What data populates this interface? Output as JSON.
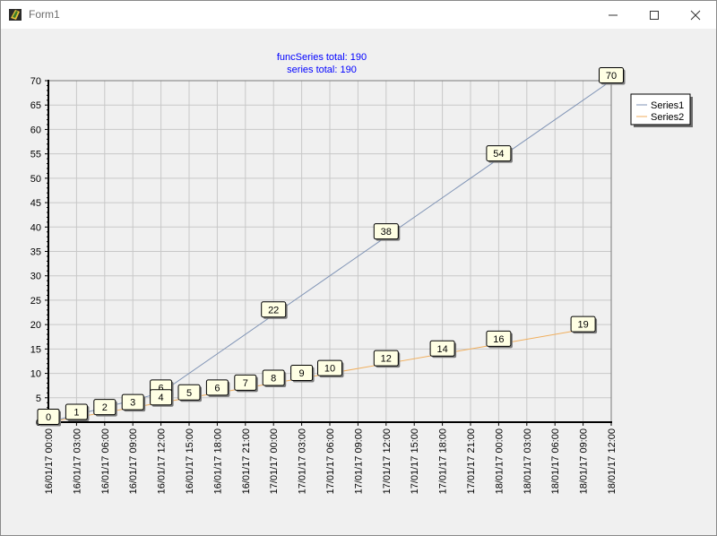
{
  "window": {
    "title": "Form1"
  },
  "chart_data": {
    "type": "line",
    "title": "funcSeries total: 190",
    "subtitle": "series total: 190",
    "title_color": "#0000ff",
    "x": [
      "16/01/17 00:00",
      "16/01/17 03:00",
      "16/01/17 06:00",
      "16/01/17 09:00",
      "16/01/17 12:00",
      "16/01/17 15:00",
      "16/01/17 18:00",
      "16/01/17 21:00",
      "17/01/17 00:00",
      "17/01/17 03:00",
      "17/01/17 06:00",
      "17/01/17 09:00",
      "17/01/17 12:00",
      "17/01/17 15:00",
      "17/01/17 18:00",
      "17/01/17 21:00",
      "18/01/17 00:00",
      "18/01/17 03:00",
      "18/01/17 06:00",
      "18/01/17 09:00",
      "18/01/17 12:00"
    ],
    "ylim": [
      0,
      70
    ],
    "yticks": [
      0,
      5,
      10,
      15,
      20,
      25,
      30,
      35,
      40,
      45,
      50,
      55,
      60,
      65,
      70
    ],
    "grid": true,
    "legend": "top-right",
    "series": [
      {
        "name": "Series1",
        "color": "#7f93b5",
        "points": [
          [
            "16/01/17 00:00",
            0
          ],
          [
            "16/01/17 12:00",
            6
          ],
          [
            "17/01/17 00:00",
            22
          ],
          [
            "17/01/17 12:00",
            38
          ],
          [
            "18/01/17 00:00",
            54
          ],
          [
            "18/01/17 12:00",
            70
          ]
        ],
        "labels": [
          "0",
          "6",
          "22",
          "38",
          "54",
          "70"
        ]
      },
      {
        "name": "Series2",
        "color": "#f0ae5c",
        "points": [
          [
            "16/01/17 00:00",
            0
          ],
          [
            "16/01/17 03:00",
            1
          ],
          [
            "16/01/17 06:00",
            2
          ],
          [
            "16/01/17 09:00",
            3
          ],
          [
            "16/01/17 12:00",
            4
          ],
          [
            "16/01/17 15:00",
            5
          ],
          [
            "16/01/17 18:00",
            6
          ],
          [
            "16/01/17 21:00",
            7
          ],
          [
            "17/01/17 00:00",
            8
          ],
          [
            "17/01/17 03:00",
            9
          ],
          [
            "17/01/17 06:00",
            10
          ],
          [
            "17/01/17 12:00",
            12
          ],
          [
            "17/01/17 18:00",
            14
          ],
          [
            "18/01/17 00:00",
            16
          ],
          [
            "18/01/17 09:00",
            19
          ]
        ],
        "labels": [
          "0",
          "1",
          "2",
          "3",
          "4",
          "5",
          "6",
          "7",
          "8",
          "9",
          "10",
          "12",
          "14",
          "16",
          "19"
        ]
      }
    ]
  }
}
